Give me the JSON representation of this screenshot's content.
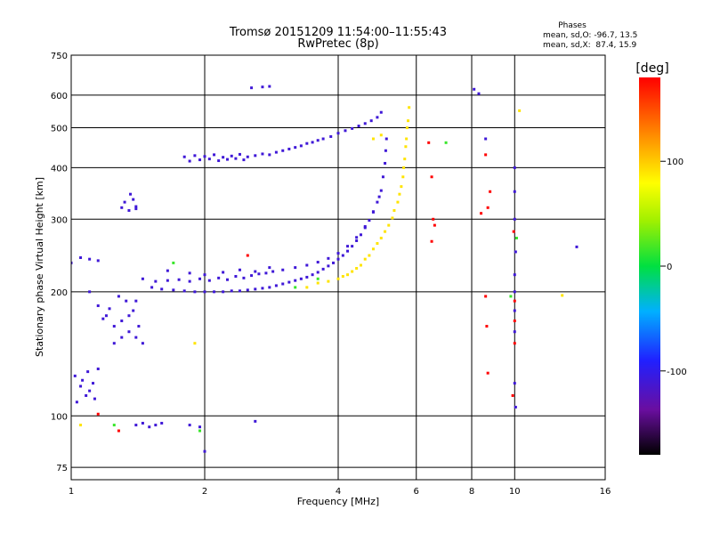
{
  "chart_data": {
    "type": "scatter",
    "title": "Tromsø 20151209 11:54:00–11:55:43",
    "subtitle": "RwPretec (8p)",
    "stats": {
      "heading": "Phases",
      "line_o": "mean, sd,O: -96.7, 13.5",
      "line_x": "mean, sd,X:  87.4, 15.9"
    },
    "xlabel": "Frequency [MHz]",
    "ylabel": "Stationary phase Virtual Height [km]",
    "x_scale": "log",
    "y_scale": "log",
    "xlim": [
      1,
      16
    ],
    "ylim": [
      70,
      750
    ],
    "x_ticks": [
      1,
      2,
      4,
      6,
      8,
      10,
      16
    ],
    "x_tick_labels": [
      "1",
      "2",
      "4",
      "6",
      "8",
      "10",
      "16"
    ],
    "y_ticks": [
      75,
      100,
      200,
      300,
      400,
      500,
      600,
      750
    ],
    "y_tick_labels": [
      "75",
      "100",
      "200",
      "300",
      "400",
      "500",
      "600",
      "750"
    ],
    "grid": true,
    "colorbar": {
      "label": "[deg]",
      "range": [
        -180,
        180
      ],
      "ticks": [
        100,
        0,
        -100
      ],
      "tick_labels": [
        "100",
        "0",
        "-100"
      ]
    },
    "series": [
      {
        "color_value": -110,
        "points": [
          [
            1.52,
            205
          ],
          [
            1.6,
            203
          ],
          [
            1.7,
            202
          ],
          [
            1.8,
            201
          ],
          [
            1.9,
            200
          ],
          [
            2.0,
            200
          ],
          [
            2.1,
            200
          ],
          [
            2.2,
            200
          ],
          [
            2.3,
            201
          ],
          [
            2.4,
            201
          ],
          [
            2.5,
            202
          ],
          [
            2.6,
            203
          ],
          [
            2.7,
            204
          ],
          [
            2.8,
            205
          ],
          [
            2.9,
            207
          ],
          [
            3.0,
            209
          ],
          [
            3.1,
            211
          ],
          [
            3.2,
            213
          ],
          [
            3.3,
            215
          ],
          [
            3.4,
            217
          ],
          [
            3.5,
            220
          ],
          [
            3.6,
            223
          ],
          [
            3.7,
            227
          ],
          [
            3.8,
            231
          ],
          [
            3.9,
            235
          ],
          [
            4.0,
            240
          ],
          [
            4.1,
            245
          ],
          [
            4.2,
            251
          ],
          [
            4.3,
            258
          ],
          [
            4.4,
            266
          ],
          [
            4.5,
            275
          ],
          [
            4.6,
            286
          ],
          [
            4.7,
            298
          ],
          [
            4.8,
            313
          ],
          [
            4.9,
            330
          ],
          [
            5.0,
            352
          ],
          [
            5.05,
            380
          ],
          [
            5.1,
            410
          ],
          [
            5.12,
            440
          ],
          [
            5.14,
            470
          ],
          [
            1.45,
            215
          ],
          [
            1.55,
            212
          ],
          [
            1.65,
            213
          ],
          [
            1.75,
            214
          ],
          [
            1.85,
            212
          ],
          [
            1.95,
            215
          ],
          [
            2.05,
            213
          ],
          [
            2.15,
            216
          ],
          [
            2.25,
            214
          ],
          [
            2.35,
            218
          ],
          [
            2.45,
            216
          ],
          [
            2.55,
            219
          ],
          [
            2.65,
            221
          ],
          [
            2.75,
            222
          ],
          [
            2.85,
            224
          ],
          [
            3.0,
            226
          ],
          [
            3.2,
            229
          ],
          [
            3.4,
            232
          ],
          [
            3.6,
            236
          ],
          [
            3.8,
            241
          ],
          [
            4.0,
            248
          ],
          [
            4.2,
            258
          ],
          [
            4.4,
            271
          ],
          [
            4.6,
            288
          ],
          [
            4.8,
            312
          ],
          [
            4.95,
            340
          ],
          [
            1.65,
            225
          ],
          [
            1.85,
            222
          ],
          [
            2.0,
            220
          ],
          [
            2.2,
            223
          ],
          [
            2.4,
            226
          ],
          [
            2.6,
            224
          ],
          [
            2.8,
            229
          ],
          [
            1.8,
            425
          ],
          [
            1.9,
            428
          ],
          [
            2.0,
            426
          ],
          [
            2.1,
            430
          ],
          [
            2.2,
            424
          ],
          [
            2.3,
            427
          ],
          [
            2.4,
            431
          ],
          [
            2.5,
            425
          ],
          [
            2.6,
            428
          ],
          [
            2.7,
            432
          ],
          [
            2.8,
            430
          ],
          [
            2.9,
            436
          ],
          [
            3.0,
            440
          ],
          [
            3.1,
            444
          ],
          [
            3.2,
            448
          ],
          [
            3.3,
            452
          ],
          [
            3.4,
            458
          ],
          [
            3.5,
            461
          ],
          [
            3.6,
            466
          ],
          [
            3.7,
            470
          ],
          [
            3.85,
            476
          ],
          [
            4.0,
            485
          ],
          [
            4.15,
            492
          ],
          [
            4.3,
            498
          ],
          [
            4.45,
            505
          ],
          [
            4.6,
            512
          ],
          [
            4.75,
            520
          ],
          [
            4.9,
            530
          ],
          [
            5.0,
            545
          ],
          [
            1.85,
            415
          ],
          [
            1.95,
            418
          ],
          [
            2.05,
            420
          ],
          [
            2.15,
            416
          ],
          [
            2.25,
            419
          ],
          [
            2.35,
            421
          ],
          [
            2.45,
            418
          ],
          [
            1.3,
            320
          ],
          [
            1.35,
            315
          ],
          [
            1.4,
            322
          ],
          [
            1.32,
            330
          ],
          [
            1.36,
            345
          ],
          [
            1.38,
            335
          ],
          [
            1.4,
            318
          ],
          [
            1.1,
            200
          ],
          [
            1.15,
            185
          ],
          [
            1.2,
            175
          ],
          [
            1.25,
            165
          ],
          [
            1.3,
            170
          ],
          [
            1.35,
            160
          ],
          [
            1.4,
            155
          ],
          [
            1.42,
            165
          ],
          [
            1.38,
            180
          ],
          [
            1.33,
            190
          ],
          [
            1.28,
            195
          ],
          [
            1.22,
            182
          ],
          [
            1.18,
            172
          ],
          [
            1.25,
            150
          ],
          [
            1.35,
            175
          ],
          [
            1.45,
            150
          ],
          [
            1.4,
            190
          ],
          [
            1.3,
            155
          ],
          [
            1.02,
            125
          ],
          [
            1.05,
            118
          ],
          [
            1.08,
            112
          ],
          [
            1.1,
            115
          ],
          [
            1.12,
            120
          ],
          [
            1.15,
            130
          ],
          [
            1.03,
            108
          ],
          [
            1.06,
            122
          ],
          [
            1.09,
            128
          ],
          [
            1.13,
            110
          ],
          [
            1.0,
            235
          ],
          [
            1.05,
            242
          ],
          [
            1.1,
            240
          ],
          [
            1.15,
            238
          ],
          [
            1.4,
            95
          ],
          [
            1.45,
            96
          ],
          [
            1.5,
            94
          ],
          [
            1.55,
            95
          ],
          [
            1.6,
            96
          ],
          [
            1.85,
            95
          ],
          [
            1.95,
            94
          ],
          [
            2.0,
            82
          ],
          [
            2.6,
            97
          ],
          [
            2.55,
            625
          ],
          [
            2.7,
            628
          ],
          [
            2.8,
            630
          ],
          [
            8.1,
            620
          ],
          [
            8.3,
            605
          ],
          [
            8.6,
            470
          ],
          [
            10.0,
            400
          ],
          [
            10.0,
            350
          ],
          [
            10.0,
            300
          ],
          [
            10.05,
            250
          ],
          [
            10.0,
            220
          ],
          [
            10.0,
            200
          ],
          [
            10.0,
            180
          ],
          [
            10.0,
            160
          ],
          [
            10.0,
            120
          ],
          [
            10.05,
            105
          ],
          [
            13.8,
            257
          ]
        ]
      },
      {
        "color_value": 90,
        "points": [
          [
            3.4,
            205
          ],
          [
            3.6,
            210
          ],
          [
            3.8,
            212
          ],
          [
            4.0,
            215
          ],
          [
            4.2,
            220
          ],
          [
            4.4,
            228
          ],
          [
            4.6,
            240
          ],
          [
            4.8,
            254
          ],
          [
            5.0,
            270
          ],
          [
            5.2,
            290
          ],
          [
            5.35,
            315
          ],
          [
            5.5,
            345
          ],
          [
            5.6,
            380
          ],
          [
            5.65,
            420
          ],
          [
            5.7,
            470
          ],
          [
            5.75,
            520
          ],
          [
            5.78,
            560
          ],
          [
            4.1,
            218
          ],
          [
            4.3,
            224
          ],
          [
            4.5,
            232
          ],
          [
            4.7,
            245
          ],
          [
            4.9,
            262
          ],
          [
            5.1,
            280
          ],
          [
            5.3,
            302
          ],
          [
            5.45,
            330
          ],
          [
            5.55,
            360
          ],
          [
            5.62,
            400
          ],
          [
            5.68,
            450
          ],
          [
            5.72,
            500
          ],
          [
            4.8,
            470
          ],
          [
            5.0,
            480
          ],
          [
            1.05,
            95
          ],
          [
            1.9,
            150
          ],
          [
            12.8,
            196
          ],
          [
            10.25,
            550
          ]
        ]
      },
      {
        "color_value": 180,
        "points": [
          [
            6.4,
            460
          ],
          [
            6.5,
            380
          ],
          [
            6.55,
            300
          ],
          [
            6.6,
            290
          ],
          [
            6.5,
            265
          ],
          [
            8.6,
            430
          ],
          [
            8.8,
            350
          ],
          [
            8.7,
            320
          ],
          [
            8.4,
            310
          ],
          [
            8.6,
            195
          ],
          [
            8.65,
            165
          ],
          [
            8.7,
            127
          ],
          [
            9.95,
            280
          ],
          [
            10.0,
            190
          ],
          [
            10.0,
            170
          ],
          [
            10.0,
            150
          ],
          [
            9.9,
            112
          ],
          [
            1.28,
            92
          ],
          [
            1.15,
            101
          ],
          [
            2.5,
            245
          ]
        ]
      },
      {
        "color_value": 15,
        "points": [
          [
            3.2,
            205
          ],
          [
            3.6,
            215
          ],
          [
            1.7,
            235
          ],
          [
            1.25,
            95
          ],
          [
            1.95,
            92
          ],
          [
            9.8,
            195
          ],
          [
            10.1,
            270
          ],
          [
            7.0,
            460
          ]
        ]
      }
    ]
  },
  "colors": {
    "grid": "#000000",
    "background": "#ffffff"
  }
}
